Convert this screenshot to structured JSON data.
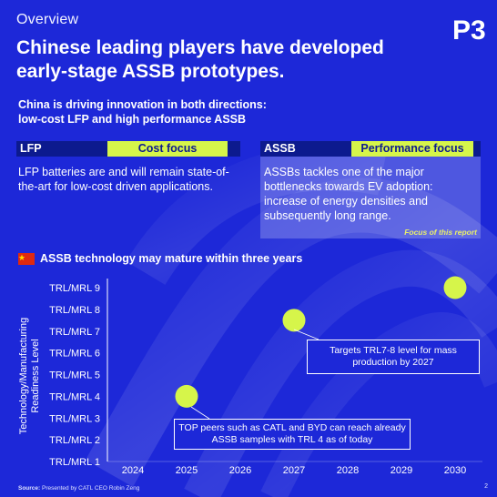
{
  "header": {
    "eyebrow": "Overview",
    "logo_text": "P3",
    "title": "Chinese leading players have developed early-stage ASSB prototypes."
  },
  "intro": {
    "subtitle_line1": "China is driving innovation in both directions:",
    "subtitle_line2": "low-cost LFP and high performance ASSB"
  },
  "lfp": {
    "label": "LFP",
    "focus": "Cost focus",
    "text": "LFP batteries are and will remain state-of-the-art for low-cost driven applications."
  },
  "assb": {
    "label": "ASSB",
    "focus": "Performance focus",
    "text": "ASSBs tackles one of the major bottlenecks towards EV adoption: increase of energy densities and subsequently long range.",
    "note": "Focus of this report"
  },
  "section": {
    "flag_icon": "china-flag-icon",
    "heading": "ASSB technology may mature within three years"
  },
  "chart_data": {
    "type": "scatter",
    "ylabel": "Technology/Manufacturing Readiness Level",
    "xlabel": "",
    "x_ticks": [
      "2024",
      "2025",
      "2026",
      "2027",
      "2028",
      "2029",
      "2030"
    ],
    "y_ticks": [
      "TRL/MRL 1",
      "TRL/MRL 2",
      "TRL/MRL 3",
      "TRL/MRL 4",
      "TRL/MRL 5",
      "TRL/MRL 6",
      "TRL/MRL 7",
      "TRL/MRL 8",
      "TRL/MRL 9"
    ],
    "points": [
      {
        "x": 2025,
        "y": 4
      },
      {
        "x": 2027,
        "y": 7.5
      },
      {
        "x": 2030,
        "y": 9
      }
    ],
    "point_color": "#d6f54a",
    "annotations": [
      "TOP peers such as CATL and BYD can reach already ASSB samples with TRL 4 as of today",
      "Targets TRL7-8 level for mass production by 2027"
    ]
  },
  "footer": {
    "source_label": "Source:",
    "source_text": "Presented by CATL CEO Robin Zeng",
    "page": "2"
  }
}
